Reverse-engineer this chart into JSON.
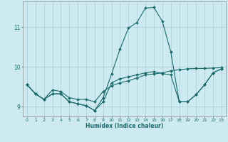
{
  "xlabel": "Humidex (Indice chaleur)",
  "bg_color": "#cdeaf0",
  "grid_color": "#aacdd6",
  "line_color": "#1a6b6b",
  "xlim": [
    -0.5,
    23.5
  ],
  "ylim": [
    8.75,
    11.65
  ],
  "yticks": [
    9,
    10,
    11
  ],
  "xticks": [
    0,
    1,
    2,
    3,
    4,
    5,
    6,
    7,
    8,
    9,
    10,
    11,
    12,
    13,
    14,
    15,
    16,
    17,
    18,
    19,
    20,
    21,
    22,
    23
  ],
  "hours": [
    0,
    1,
    2,
    3,
    4,
    5,
    6,
    7,
    8,
    9,
    10,
    11,
    12,
    13,
    14,
    15,
    16,
    17,
    18,
    19,
    20,
    21,
    22,
    23
  ],
  "line1": [
    9.55,
    9.32,
    9.18,
    9.42,
    9.38,
    9.22,
    9.18,
    9.18,
    9.12,
    9.38,
    9.52,
    9.6,
    9.65,
    9.72,
    9.8,
    9.82,
    9.85,
    9.9,
    9.93,
    9.95,
    9.96,
    9.96,
    9.97,
    9.98
  ],
  "line2": [
    9.55,
    9.32,
    9.18,
    9.32,
    9.32,
    9.12,
    9.07,
    9.02,
    8.9,
    9.22,
    9.82,
    10.45,
    10.98,
    11.12,
    11.48,
    11.5,
    11.15,
    10.38,
    9.12,
    9.12,
    9.3,
    9.55,
    9.85,
    9.95
  ],
  "line3": [
    9.55,
    9.32,
    9.18,
    9.32,
    9.32,
    9.12,
    9.07,
    9.02,
    8.9,
    9.12,
    9.6,
    9.7,
    9.75,
    9.8,
    9.85,
    9.88,
    9.83,
    9.8,
    9.12,
    9.12,
    9.3,
    9.55,
    9.85,
    9.95
  ]
}
